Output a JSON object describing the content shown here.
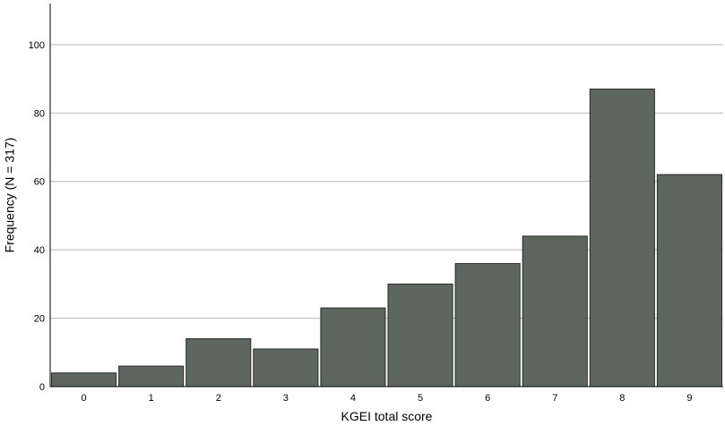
{
  "chart_data": {
    "type": "bar",
    "categories": [
      "0",
      "1",
      "2",
      "3",
      "4",
      "5",
      "6",
      "7",
      "8",
      "9"
    ],
    "values": [
      4,
      6,
      14,
      11,
      23,
      30,
      36,
      44,
      87,
      62
    ],
    "title": "",
    "xlabel": "KGEI total score",
    "ylabel": "Frequency (N = 317)",
    "ylim": [
      0,
      112
    ],
    "yticks": [
      0,
      20,
      40,
      60,
      80,
      100
    ],
    "grid": true,
    "bar_color": "#5e6660"
  }
}
